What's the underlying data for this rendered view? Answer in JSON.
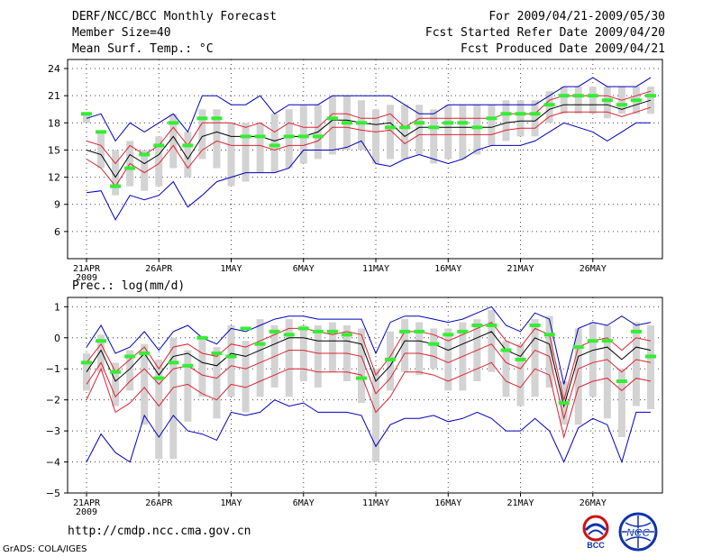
{
  "header": {
    "title": "DERF/NCC/BCC Monthly Forecast",
    "member": "Member Size=40",
    "variable": "Mean Surf. Temp.: °C",
    "period": "For 2009/04/21-2009/05/30",
    "started": "Fcst Started Refer Date 2009/04/20",
    "produced": "Fcst Produced Date 2009/04/21"
  },
  "footer": {
    "url": "http://cmdp.ncc.cma.gov.cn",
    "grads": "GrADS: COLA/IGES",
    "bcc_label": "BCC",
    "ncc_label": "NCC"
  },
  "colors": {
    "envelope": "#0000bb",
    "spread": "#dd2233",
    "mean": "#000000",
    "bar": "#d3d3d3",
    "obs": "#33ee33"
  },
  "chart_data": [
    {
      "type": "line",
      "title": "Mean Surf. Temp.: °C",
      "x_ticks": [
        "21APR",
        "26APR",
        "1MAY",
        "6MAY",
        "11MAY",
        "16MAY",
        "21MAY",
        "26MAY"
      ],
      "x_year": "2009",
      "ylim": [
        3,
        25
      ],
      "yticks": [
        6,
        9,
        12,
        15,
        18,
        21,
        24
      ],
      "grid": true,
      "series": [
        {
          "name": "max",
          "values": [
            18.5,
            19,
            16,
            18,
            17,
            18,
            19,
            17,
            21,
            21,
            20,
            20,
            21,
            19,
            20,
            20,
            20,
            21,
            21,
            21,
            21,
            21,
            20,
            19,
            19,
            20,
            20,
            20,
            20,
            20,
            20,
            20,
            21,
            22,
            22,
            23,
            22,
            22,
            22,
            23
          ]
        },
        {
          "name": "upper",
          "values": [
            16,
            15.5,
            13.5,
            15.5,
            14.5,
            15.5,
            17.5,
            15.5,
            18,
            18,
            18,
            17.5,
            18,
            17,
            18,
            17.5,
            17.5,
            19,
            19,
            18.5,
            18.5,
            19,
            17.5,
            18.5,
            18.5,
            18.5,
            18.5,
            18.5,
            18.5,
            19,
            19,
            19,
            20.5,
            21,
            21,
            21,
            21,
            20.5,
            21,
            21.5
          ]
        },
        {
          "name": "mean",
          "values": [
            15,
            14.5,
            12,
            14.5,
            13.5,
            14.5,
            16.5,
            14,
            16.5,
            17,
            16.5,
            16.5,
            16.5,
            16,
            16.5,
            16.5,
            17,
            18.3,
            18.3,
            18,
            17.8,
            18,
            16.5,
            17.5,
            17.5,
            17.5,
            17.5,
            17.5,
            17.5,
            18,
            18.2,
            18.2,
            19.5,
            20,
            20,
            20,
            20,
            19.5,
            20,
            20.5
          ]
        },
        {
          "name": "lower",
          "values": [
            14,
            13,
            11,
            13.5,
            12.5,
            13.5,
            15.5,
            13,
            15,
            16,
            15.5,
            15.5,
            15.5,
            15,
            15.5,
            15.5,
            16,
            17.5,
            17.5,
            17.2,
            17,
            17.2,
            15.7,
            16.7,
            16.7,
            16.7,
            16.7,
            16.7,
            16.7,
            17.2,
            17.4,
            17.4,
            18.7,
            19.2,
            19.2,
            19.2,
            19.2,
            18.7,
            19.2,
            19.7
          ]
        },
        {
          "name": "min",
          "values": [
            10.3,
            10.5,
            7.3,
            10,
            9.5,
            10,
            11.5,
            8.7,
            10,
            11.5,
            12,
            12.5,
            12.5,
            12.5,
            13,
            15,
            15,
            15,
            15.3,
            16,
            13.5,
            13.2,
            14,
            14.5,
            14,
            13.5,
            14,
            15,
            15.5,
            15.5,
            15.5,
            16,
            17,
            18,
            17.5,
            17,
            16,
            17,
            18,
            18
          ]
        }
      ],
      "bars": [
        [
          18,
          19
        ],
        [
          13,
          17
        ],
        [
          10,
          15
        ],
        [
          11,
          16
        ],
        [
          10.5,
          15
        ],
        [
          11,
          16.5
        ],
        [
          13,
          19
        ],
        [
          12,
          17
        ],
        [
          14,
          19.5
        ],
        [
          13,
          19.5
        ],
        [
          11,
          18
        ],
        [
          11.5,
          18
        ],
        [
          12.5,
          18
        ],
        [
          12.5,
          19
        ],
        [
          13,
          19.5
        ],
        [
          13.5,
          20
        ],
        [
          14,
          20
        ],
        [
          14.5,
          21
        ],
        [
          15,
          21
        ],
        [
          15,
          20.5
        ],
        [
          13.5,
          19.5
        ],
        [
          14,
          20
        ],
        [
          14,
          20
        ],
        [
          14.5,
          20
        ],
        [
          13.5,
          19.5
        ],
        [
          14,
          20
        ],
        [
          14,
          20
        ],
        [
          14.5,
          20
        ],
        [
          15.5,
          20
        ],
        [
          16,
          20.5
        ],
        [
          16.5,
          20.5
        ],
        [
          16.5,
          20.5
        ],
        [
          18,
          21.5
        ],
        [
          19,
          22
        ],
        [
          19,
          22
        ],
        [
          19,
          22
        ],
        [
          18.5,
          22
        ],
        [
          19,
          22
        ],
        [
          19,
          22
        ],
        [
          19,
          22
        ]
      ],
      "obs": [
        19,
        17,
        11,
        13,
        14.5,
        15.5,
        18,
        15.5,
        18.5,
        18.5,
        null,
        16.5,
        16.5,
        15.5,
        16.5,
        16.5,
        16.5,
        18.5,
        18,
        18,
        null,
        17.5,
        17.5,
        18,
        17.5,
        18,
        18,
        17.5,
        18.5,
        19,
        19,
        19,
        20,
        21,
        21,
        21,
        20.5,
        20,
        20.5,
        21
      ]
    },
    {
      "type": "line",
      "title": "Prec.: log(mm/d)",
      "x_ticks": [
        "21APR",
        "26APR",
        "1MAY",
        "6MAY",
        "11MAY",
        "16MAY",
        "21MAY",
        "26MAY"
      ],
      "x_year": "2009",
      "ylim": [
        -5,
        1.3
      ],
      "yticks": [
        -5,
        -4,
        -3,
        -2,
        -1,
        0,
        1
      ],
      "grid": true,
      "series": [
        {
          "name": "max",
          "values": [
            -0.3,
            0.4,
            -0.5,
            -0.3,
            0.2,
            -0.4,
            0.2,
            0.4,
            0,
            -0.2,
            0.3,
            0.2,
            0.4,
            0.6,
            0.7,
            0.7,
            0.6,
            0.6,
            0.6,
            0.6,
            -0.5,
            0.5,
            0.7,
            0.7,
            0.6,
            0.5,
            0.6,
            0.8,
            1,
            0.4,
            0.2,
            0.8,
            0.6,
            -1.5,
            0.3,
            0.5,
            0.4,
            0.7,
            0.4,
            0.5
          ]
        },
        {
          "name": "upper",
          "values": [
            -0.8,
            -0.2,
            -1.1,
            -0.7,
            -0.3,
            -1,
            -0.3,
            -0.2,
            -0.5,
            -0.6,
            -0.2,
            -0.3,
            -0.1,
            0.1,
            0.3,
            0.3,
            0.2,
            0.1,
            0.2,
            0.1,
            -1.2,
            -0.6,
            0.2,
            0.2,
            0.1,
            -0.1,
            0.1,
            0.3,
            0.5,
            -0.1,
            -0.3,
            0.3,
            0.1,
            -2,
            -0.3,
            -0.1,
            0,
            -0.4,
            0,
            -0.1
          ]
        },
        {
          "name": "mean",
          "values": [
            -1.1,
            -0.4,
            -1.4,
            -1,
            -0.5,
            -1.2,
            -0.6,
            -0.5,
            -0.8,
            -0.9,
            -0.5,
            -0.6,
            -0.4,
            -0.2,
            0,
            0,
            -0.1,
            -0.1,
            -0.1,
            -0.2,
            -1.4,
            -0.9,
            -0.1,
            -0.1,
            -0.2,
            -0.4,
            -0.2,
            0,
            0.2,
            -0.4,
            -0.6,
            0,
            -0.2,
            -2.2,
            -0.6,
            -0.4,
            -0.3,
            -0.7,
            -0.3,
            -0.4
          ]
        },
        {
          "name": "lower",
          "values": [
            -1.5,
            -0.8,
            -1.9,
            -1.4,
            -1,
            -1.5,
            -1,
            -0.9,
            -1.2,
            -1.3,
            -0.9,
            -1,
            -0.8,
            -0.6,
            -0.4,
            -0.4,
            -0.5,
            -0.5,
            -0.5,
            -0.6,
            -1.8,
            -1.3,
            -0.5,
            -0.5,
            -0.6,
            -0.8,
            -0.6,
            -0.4,
            -0.2,
            -0.8,
            -1,
            -0.4,
            -0.6,
            -2.6,
            -1,
            -0.8,
            -0.7,
            -1.1,
            -0.7,
            -0.8
          ]
        },
        {
          "name": "min",
          "values": [
            -4,
            -3.1,
            -3.7,
            -4,
            -2.5,
            -3.2,
            -2.5,
            -3,
            -3.1,
            -3.3,
            -2.4,
            -2.5,
            -2.4,
            -2,
            -2.2,
            -2.1,
            -2.4,
            -2.4,
            -2.4,
            -2.5,
            -3.5,
            -2.8,
            -2.6,
            -2.6,
            -2.5,
            -2.7,
            -2.6,
            -2.4,
            -2.6,
            -3,
            -3,
            -2.6,
            -3,
            -4,
            -2.9,
            -2.6,
            -2.8,
            -4,
            -2.4,
            -2.4
          ]
        },
        {
          "name": "lowest",
          "values": [
            -2,
            -1,
            -2.4,
            -2.1,
            -1.6,
            -2.2,
            -1.6,
            -1.5,
            -1.8,
            -2,
            -1.5,
            -1.6,
            -1.4,
            -1.2,
            -1,
            -1,
            -1.1,
            -1.1,
            -1.1,
            -1.2,
            -2.4,
            -1.9,
            -1.1,
            -1.1,
            -1.2,
            -1.4,
            -1.2,
            -1,
            -0.8,
            -1.4,
            -1.6,
            -1,
            -1.2,
            -3.2,
            -1.6,
            -1.4,
            -1.3,
            -1.7,
            -1.3,
            -1.4
          ]
        }
      ],
      "bars": [
        [
          -1.7,
          -0.5
        ],
        [
          -1.1,
          0.1
        ],
        [
          -2.2,
          -0.8
        ],
        [
          -1.7,
          -0.4
        ],
        [
          -2.8,
          -0.2
        ],
        [
          -3.9,
          -0.7
        ],
        [
          -3.9,
          0
        ],
        [
          -2.7,
          -0.4
        ],
        [
          -1.9,
          0
        ],
        [
          -2.6,
          -0.3
        ],
        [
          -1.9,
          0.4
        ],
        [
          -2.4,
          -0.1
        ],
        [
          -1.9,
          0.6
        ],
        [
          -1.6,
          0.4
        ],
        [
          -1.9,
          0.6
        ],
        [
          -1.4,
          0.4
        ],
        [
          -1.6,
          0.4
        ],
        [
          -1.1,
          0.5
        ],
        [
          -1.4,
          0.4
        ],
        [
          -2.1,
          0.3
        ],
        [
          -4,
          -1
        ],
        [
          -1.7,
          0.2
        ],
        [
          -1.1,
          0.6
        ],
        [
          -1.2,
          0.5
        ],
        [
          -1,
          0.3
        ],
        [
          -1.7,
          0.3
        ],
        [
          -1.7,
          0.5
        ],
        [
          -1.4,
          0.6
        ],
        [
          -1.1,
          0.9
        ],
        [
          -1.9,
          -0.1
        ],
        [
          -2.2,
          -0.2
        ],
        [
          -1.9,
          0.6
        ],
        [
          -1.6,
          0.7
        ],
        [
          -2.8,
          -1.4
        ],
        [
          -2.8,
          0.3
        ],
        [
          -1.9,
          0.5
        ],
        [
          -2.6,
          0.4
        ],
        [
          -3.2,
          -1
        ],
        [
          -2.2,
          0.5
        ],
        [
          -2.3,
          0.4
        ]
      ],
      "obs": [
        -0.8,
        -0.1,
        -1.1,
        -0.6,
        -0.5,
        -1.3,
        -0.8,
        -0.9,
        0,
        -0.5,
        -0.6,
        0.3,
        -0.2,
        0.2,
        0.1,
        0.3,
        0.2,
        0.2,
        0.1,
        -1.3,
        null,
        -0.7,
        0.2,
        0.2,
        -0.2,
        0.1,
        0.2,
        0.4,
        0.4,
        -0.4,
        -0.7,
        0.4,
        0.1,
        -2.1,
        -0.3,
        -0.1,
        -0.1,
        -1.4,
        0.2,
        -0.6
      ]
    }
  ]
}
